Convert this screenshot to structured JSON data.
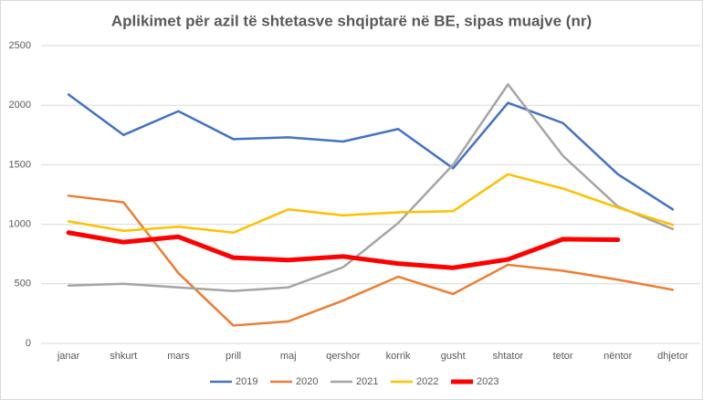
{
  "chart_data": {
    "type": "line",
    "title": "Aplikimet për azil të shtetasve shqiptarë në BE, sipas muajve (nr)",
    "categories": [
      "janar",
      "shkurt",
      "mars",
      "prill",
      "maj",
      "qershor",
      "korrik",
      "gusht",
      "shtator",
      "tetor",
      "nëntor",
      "dhjetor"
    ],
    "series": [
      {
        "name": "2019",
        "color": "#4472c4",
        "line_width": 2.5,
        "values": [
          2090,
          1750,
          1950,
          1715,
          1730,
          1695,
          1800,
          1470,
          2020,
          1850,
          1420,
          1125
        ]
      },
      {
        "name": "2020",
        "color": "#ed7d31",
        "line_width": 2.5,
        "values": [
          1240,
          1185,
          590,
          150,
          185,
          360,
          560,
          415,
          660,
          610,
          535,
          450
        ]
      },
      {
        "name": "2021",
        "color": "#a5a5a5",
        "line_width": 2.5,
        "values": [
          485,
          500,
          470,
          440,
          470,
          640,
          1010,
          1500,
          2175,
          1575,
          1150,
          960
        ]
      },
      {
        "name": "2022",
        "color": "#ffc000",
        "line_width": 2.5,
        "values": [
          1025,
          945,
          980,
          930,
          1125,
          1075,
          1100,
          1110,
          1420,
          1300,
          1140,
          995
        ]
      },
      {
        "name": "2023",
        "color": "#ff0000",
        "line_width": 5,
        "values": [
          930,
          850,
          895,
          720,
          700,
          730,
          670,
          635,
          705,
          875,
          870,
          null
        ]
      }
    ],
    "ylim": [
      0,
      2500
    ],
    "yticks": [
      0,
      500,
      1000,
      1500,
      2000,
      2500
    ],
    "grid": true,
    "legend": "bottom"
  }
}
